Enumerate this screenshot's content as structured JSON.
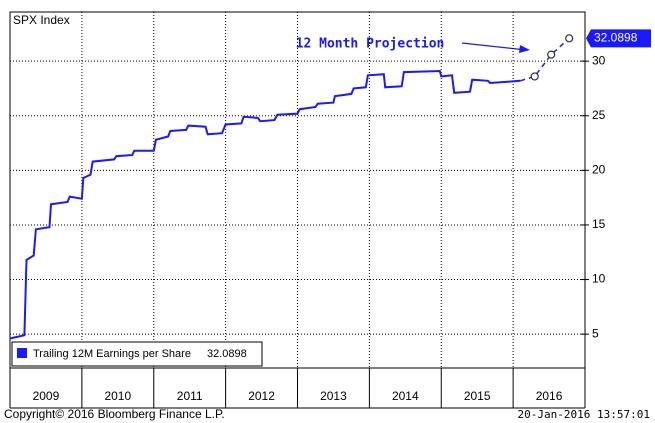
{
  "chart_data": {
    "type": "line",
    "title": "SPX Index",
    "annotation": "12 Month Projection",
    "copyright": "Copyright© 2016 Bloomberg Finance L.P.",
    "timestamp": "20-Jan-2016 13:57:01",
    "xlim": [
      2009,
      2017
    ],
    "xticks": [
      {
        "value": 2009.5,
        "label": "2009"
      },
      {
        "value": 2010.5,
        "label": "2010"
      },
      {
        "value": 2011.5,
        "label": "2011"
      },
      {
        "value": 2012.5,
        "label": "2012"
      },
      {
        "value": 2013.5,
        "label": "2013"
      },
      {
        "value": 2014.5,
        "label": "2014"
      },
      {
        "value": 2015.5,
        "label": "2015"
      },
      {
        "value": 2016.5,
        "label": "2016"
      }
    ],
    "ylim": [
      1.9,
      34.5
    ],
    "yticks": [
      5,
      10,
      15,
      20,
      25,
      30
    ],
    "grid": true,
    "legend": "bottom-left",
    "series": [
      {
        "name": "Trailing 12M Earnings per Share",
        "color": "#1a1aff",
        "x": [
          2009.0,
          2009.2,
          2009.23,
          2009.33,
          2009.36,
          2009.55,
          2009.57,
          2009.8,
          2009.83,
          2010.0,
          2010.02,
          2010.12,
          2010.15,
          2010.45,
          2010.48,
          2010.7,
          2010.73,
          2011.0,
          2011.03,
          2011.2,
          2011.23,
          2011.45,
          2011.48,
          2011.72,
          2011.75,
          2011.95,
          2012.0,
          2012.22,
          2012.25,
          2012.45,
          2012.48,
          2012.68,
          2012.72,
          2013.0,
          2013.03,
          2013.25,
          2013.28,
          2013.5,
          2013.52,
          2013.75,
          2013.78,
          2013.95,
          2013.98,
          2014.2,
          2014.22,
          2014.45,
          2014.48,
          2014.98,
          2015.0,
          2015.15,
          2015.18,
          2015.4,
          2015.43,
          2015.65,
          2015.68,
          2015.9,
          2016.1
        ],
        "values": [
          4.6,
          4.9,
          11.8,
          12.2,
          14.6,
          14.8,
          16.9,
          17.1,
          17.6,
          17.4,
          19.3,
          19.6,
          20.8,
          21.0,
          21.3,
          21.4,
          21.8,
          21.8,
          22.8,
          23.1,
          23.6,
          23.7,
          24.1,
          24.0,
          23.3,
          23.4,
          24.2,
          24.3,
          24.9,
          24.8,
          24.5,
          24.6,
          25.1,
          25.2,
          25.6,
          25.8,
          26.1,
          26.2,
          26.8,
          27.0,
          27.5,
          27.6,
          28.7,
          28.8,
          27.6,
          27.7,
          29.0,
          29.1,
          28.6,
          28.7,
          27.1,
          27.2,
          28.3,
          28.2,
          28.0,
          28.1,
          28.2
        ]
      }
    ],
    "projection": {
      "color": "#1a1aff",
      "x": [
        2016.1,
        2016.3,
        2016.53,
        2016.78
      ],
      "values": [
        28.2,
        28.6,
        30.6,
        32.0898
      ]
    }
  }
}
